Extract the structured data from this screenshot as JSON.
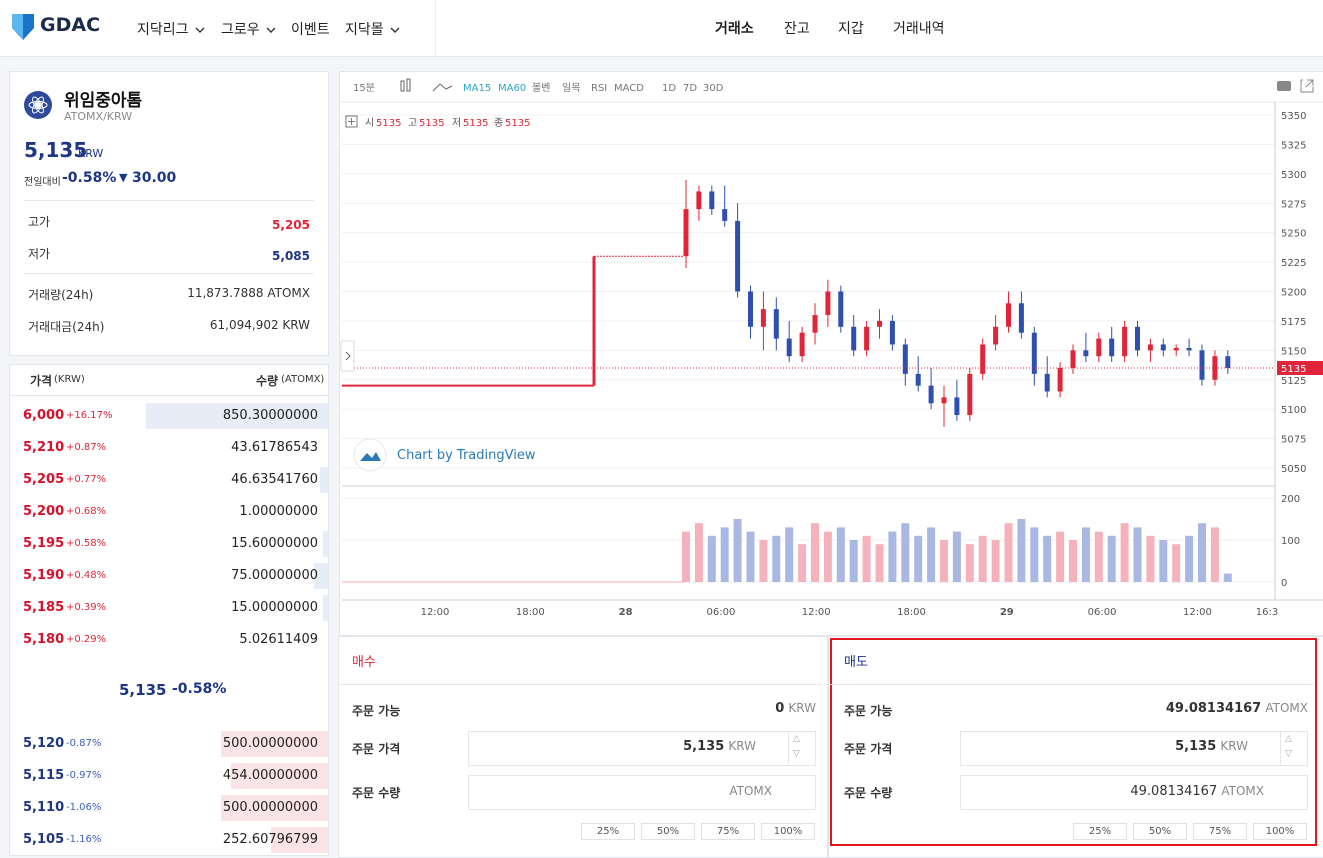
{
  "header": {
    "logo": "GDAC",
    "nav": [
      "지닥리그",
      "그로우",
      "이벤트",
      "지닥몰"
    ],
    "tabs": [
      "거래소",
      "잔고",
      "지갑",
      "거래내역"
    ]
  },
  "coin": {
    "name": "위임중아톰",
    "pair": "ATOMX/KRW",
    "price": "5,135",
    "unit": "KRW",
    "change_label": "전일대비",
    "change_pct": "-0.58%",
    "change_abs": "30.00",
    "stats": [
      {
        "label": "고가",
        "value": "5,205"
      },
      {
        "label": "저가",
        "value": "5,085"
      },
      {
        "label": "거래량(24h)",
        "value": "11,873.7888 ATOMX"
      },
      {
        "label": "거래대금(24h)",
        "value": "61,094,902 KRW"
      }
    ]
  },
  "orderbook": {
    "price_header": "가격",
    "price_unit": "(KRW)",
    "qty_header": "수량",
    "qty_unit": "(ATOMX)",
    "asks": [
      {
        "price": "6,000",
        "pct": "+16.17%",
        "qty": "850.30000000"
      },
      {
        "price": "5,210",
        "pct": "+0.87%",
        "qty": "43.61786543"
      },
      {
        "price": "5,205",
        "pct": "+0.77%",
        "qty": "46.63541760"
      },
      {
        "price": "5,200",
        "pct": "+0.68%",
        "qty": "1.00000000"
      },
      {
        "price": "5,195",
        "pct": "+0.58%",
        "qty": "15.60000000"
      },
      {
        "price": "5,190",
        "pct": "+0.48%",
        "qty": "75.00000000"
      },
      {
        "price": "5,185",
        "pct": "+0.39%",
        "qty": "15.00000000"
      },
      {
        "price": "5,180",
        "pct": "+0.29%",
        "qty": "5.02611409"
      }
    ],
    "current_price": "5,135",
    "current_pct": "-0.58%",
    "bids": [
      {
        "price": "5,120",
        "pct": "-0.87%",
        "qty": "500.00000000"
      },
      {
        "price": "5,115",
        "pct": "-0.97%",
        "qty": "454.00000000"
      },
      {
        "price": "5,110",
        "pct": "-1.06%",
        "qty": "500.00000000"
      },
      {
        "price": "5,105",
        "pct": "-1.16%",
        "qty": "252.60796799"
      }
    ]
  },
  "chart": {
    "type": "candlestick",
    "toolbar": [
      "15분",
      "MA15",
      "MA60",
      "볼벤",
      "일목",
      "RSI",
      "MACD",
      "1D",
      "7D",
      "30D"
    ],
    "legend_labels": [
      "시",
      "고",
      "저",
      "종"
    ],
    "legend_values": [
      "5135",
      "5135",
      "5135",
      "5135"
    ],
    "watermark": "Chart by TradingView",
    "last": 5135,
    "ylim": [
      5050,
      5350
    ],
    "yticks": [
      5350,
      5325,
      5300,
      5275,
      5250,
      5225,
      5200,
      5175,
      5150,
      5125,
      5100,
      5075,
      5050
    ],
    "vol_lim": [
      0,
      200
    ],
    "vol_ticks": [
      200,
      100,
      0
    ],
    "xticks": [
      "12:00",
      "18:00",
      "28",
      "06:00",
      "12:00",
      "18:00",
      "29",
      "06:00",
      "12:00",
      "16:3"
    ],
    "flat_prices": [
      5120,
      5230
    ],
    "candles": [
      [
        5230,
        5295,
        5220,
        5270,
        120
      ],
      [
        5270,
        5290,
        5260,
        5285,
        140
      ],
      [
        5285,
        5290,
        5265,
        5270,
        110
      ],
      [
        5270,
        5290,
        5255,
        5260,
        130
      ],
      [
        5260,
        5275,
        5195,
        5200,
        150
      ],
      [
        5200,
        5205,
        5160,
        5170,
        120
      ],
      [
        5170,
        5200,
        5150,
        5185,
        100
      ],
      [
        5185,
        5195,
        5150,
        5160,
        110
      ],
      [
        5160,
        5175,
        5140,
        5145,
        130
      ],
      [
        5145,
        5170,
        5140,
        5165,
        90
      ],
      [
        5165,
        5190,
        5155,
        5180,
        140
      ],
      [
        5180,
        5210,
        5170,
        5200,
        120
      ],
      [
        5200,
        5205,
        5165,
        5170,
        130
      ],
      [
        5170,
        5180,
        5145,
        5150,
        100
      ],
      [
        5150,
        5175,
        5145,
        5170,
        110
      ],
      [
        5170,
        5185,
        5160,
        5175,
        90
      ],
      [
        5175,
        5180,
        5150,
        5155,
        120
      ],
      [
        5155,
        5160,
        5120,
        5130,
        140
      ],
      [
        5130,
        5145,
        5115,
        5120,
        110
      ],
      [
        5120,
        5135,
        5100,
        5105,
        130
      ],
      [
        5105,
        5120,
        5085,
        5110,
        100
      ],
      [
        5110,
        5125,
        5090,
        5095,
        120
      ],
      [
        5095,
        5135,
        5090,
        5130,
        90
      ],
      [
        5130,
        5160,
        5125,
        5155,
        110
      ],
      [
        5155,
        5180,
        5150,
        5170,
        100
      ],
      [
        5170,
        5200,
        5165,
        5190,
        140
      ],
      [
        5190,
        5200,
        5160,
        5165,
        150
      ],
      [
        5165,
        5170,
        5120,
        5130,
        130
      ],
      [
        5130,
        5145,
        5110,
        5115,
        110
      ],
      [
        5115,
        5140,
        5110,
        5135,
        120
      ],
      [
        5135,
        5155,
        5130,
        5150,
        100
      ],
      [
        5150,
        5165,
        5140,
        5145,
        130
      ],
      [
        5145,
        5165,
        5140,
        5160,
        120
      ],
      [
        5160,
        5170,
        5140,
        5145,
        110
      ],
      [
        5145,
        5175,
        5140,
        5170,
        140
      ],
      [
        5170,
        5175,
        5145,
        5150,
        130
      ],
      [
        5150,
        5160,
        5140,
        5155,
        110
      ],
      [
        5155,
        5160,
        5145,
        5150,
        100
      ],
      [
        5150,
        5155,
        5145,
        5152,
        90
      ],
      [
        5152,
        5160,
        5145,
        5150,
        110
      ],
      [
        5150,
        5155,
        5120,
        5125,
        140
      ],
      [
        5125,
        5150,
        5120,
        5145,
        130
      ],
      [
        5145,
        5150,
        5130,
        5135,
        20
      ]
    ]
  },
  "order": {
    "percents": [
      "25%",
      "50%",
      "75%",
      "100%"
    ],
    "available_label": "주문 가능",
    "price_label": "주문 가격",
    "qty_label": "주문 수량",
    "buy": {
      "title": "매수",
      "available": "0",
      "available_unit": "KRW",
      "price": "5,135",
      "price_unit": "KRW",
      "qty_unit": "ATOMX"
    },
    "sell": {
      "title": "매도",
      "available": "49.08134167",
      "available_unit": "ATOMX",
      "price": "5,135",
      "price_unit": "KRW",
      "qty": "49.08134167",
      "qty_unit": "ATOMX"
    }
  }
}
